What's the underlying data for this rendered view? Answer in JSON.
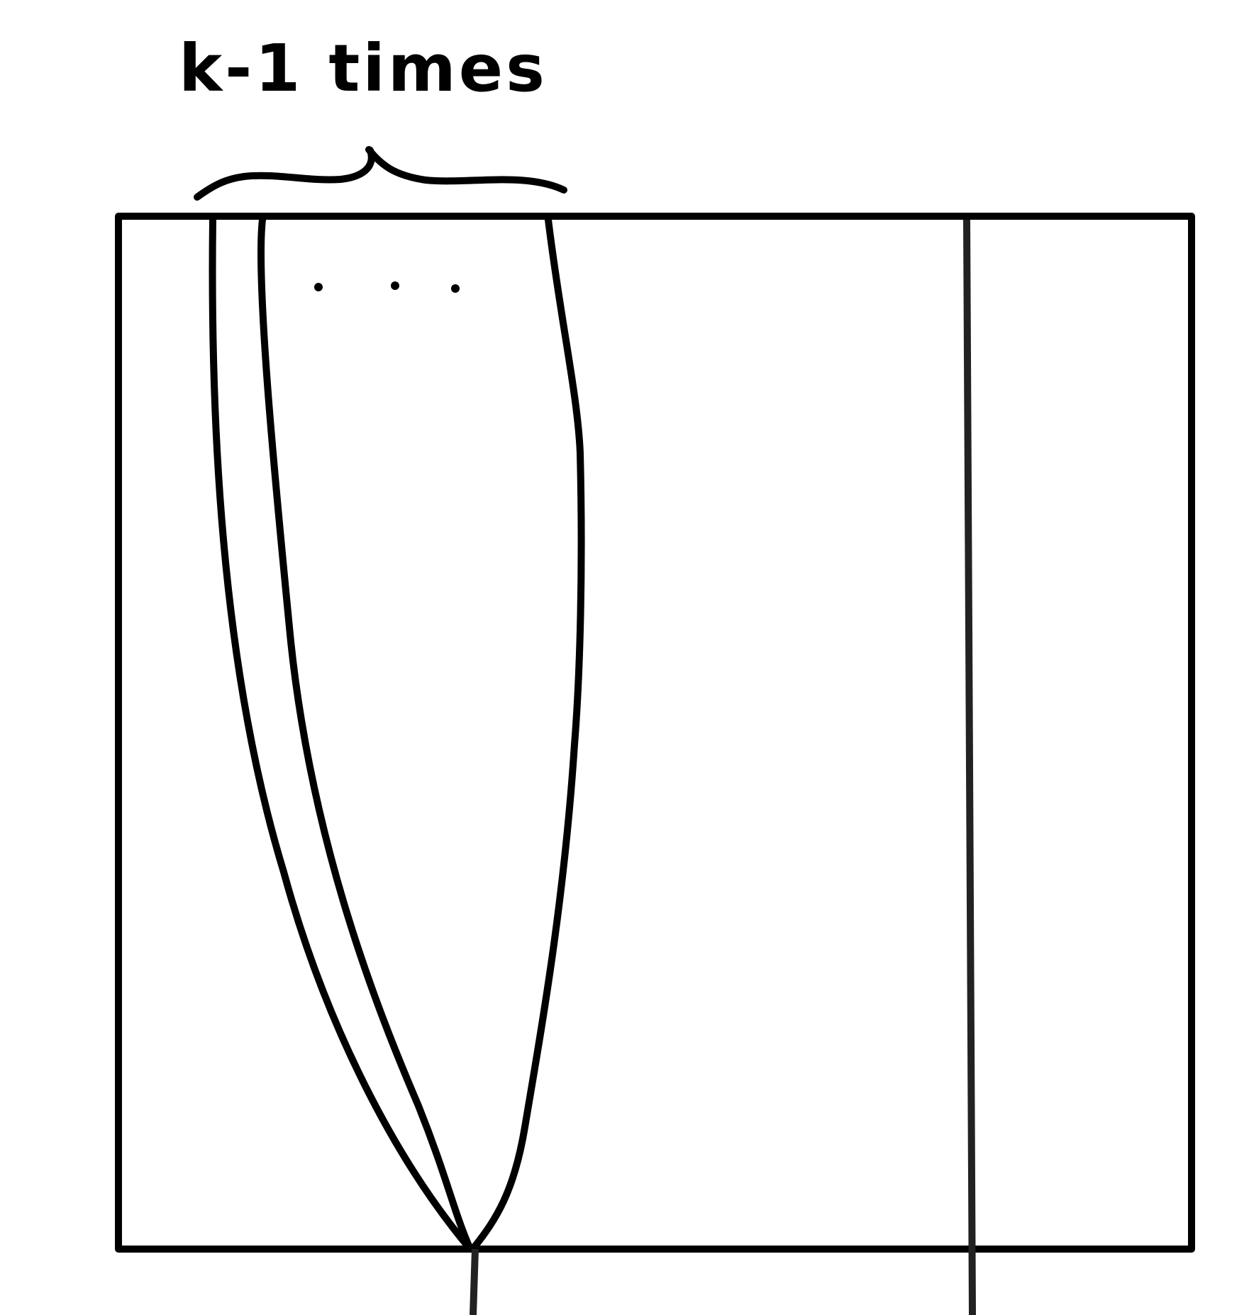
{
  "diagram": {
    "label": "k-1 times",
    "ellipsis": "· · ·"
  },
  "colors": {
    "ink": "#000000",
    "dark_ink": "#222222",
    "background": "#ffffff"
  }
}
